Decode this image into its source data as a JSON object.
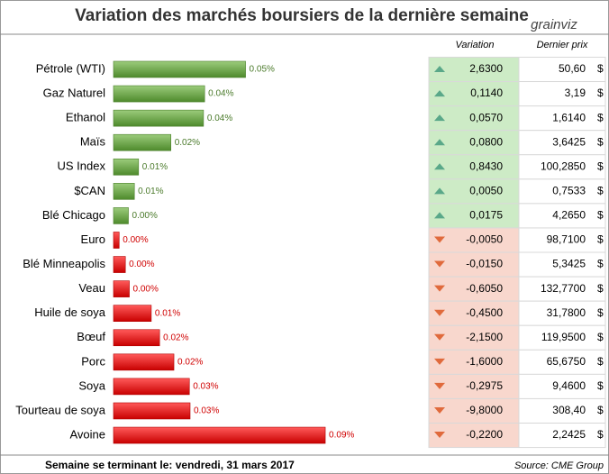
{
  "chart_data": {
    "type": "bar",
    "orientation": "horizontal",
    "title": "Variation des marchés boursiers de la dernière semaine",
    "categories": [
      "Pétrole (WTI)",
      "Gaz Naturel",
      "Ethanol",
      "Maïs",
      "US Index",
      "$CAN",
      "Blé Chicago",
      "Euro",
      "Blé Minneapolis",
      "Veau",
      "Huile de soya",
      "Bœuf",
      "Porc",
      "Soya",
      "Tourteau de soya",
      "Avoine"
    ],
    "values": [
      0.0548,
      0.0371,
      0.0366,
      0.0225,
      0.0085,
      0.0067,
      0.0041,
      0.0001,
      0.0028,
      0.0045,
      0.014,
      0.0176,
      0.0238,
      0.0305,
      0.0308,
      0.0893
    ],
    "value_labels": [
      "0.05%",
      "0.04%",
      "0.04%",
      "0.02%",
      "0.01%",
      "0.01%",
      "0.00%",
      "0.00%",
      "0.00%",
      "0.00%",
      "0.01%",
      "0.02%",
      "0.02%",
      "0.03%",
      "0.03%",
      "0.09%"
    ],
    "colors": [
      "#5e9e3a",
      "#5e9e3a",
      "#5e9e3a",
      "#5e9e3a",
      "#5e9e3a",
      "#5e9e3a",
      "#5e9e3a",
      "#e01010",
      "#e01010",
      "#e01010",
      "#e01010",
      "#e01010",
      "#e01010",
      "#e01010",
      "#e01010",
      "#e01010"
    ]
  },
  "table": {
    "headers": [
      "Variation",
      "Dernier prix"
    ],
    "rows": [
      [
        "2,6300",
        "50,60",
        "$"
      ],
      [
        "0,1140",
        "3,19",
        "$"
      ],
      [
        "0,0570",
        "1,6140",
        "$"
      ],
      [
        "0,0800",
        "3,6425",
        "$"
      ],
      [
        "0,8430",
        "100,2850",
        "$"
      ],
      [
        "0,0050",
        "0,7533",
        "$"
      ],
      [
        "0,0175",
        "4,2650",
        "$"
      ],
      [
        "-0,0050",
        "98,7100",
        "$"
      ],
      [
        "-0,0150",
        "5,3425",
        "$"
      ],
      [
        "-0,6050",
        "132,7700",
        "$"
      ],
      [
        "-0,4500",
        "31,7800",
        "$"
      ],
      [
        "-2,1500",
        "119,9500",
        "$"
      ],
      [
        "-1,6000",
        "65,6750",
        "$"
      ],
      [
        "-0,2975",
        "9,4600",
        "$"
      ],
      [
        "-9,8000",
        "308,40",
        "$"
      ],
      [
        "-0,2200",
        "2,2425",
        "$"
      ]
    ]
  },
  "logo": "grainviz",
  "footer": {
    "note": "Semaine se terminant le: vendredi, 31 mars 2017",
    "source": "Source: CME Group"
  }
}
